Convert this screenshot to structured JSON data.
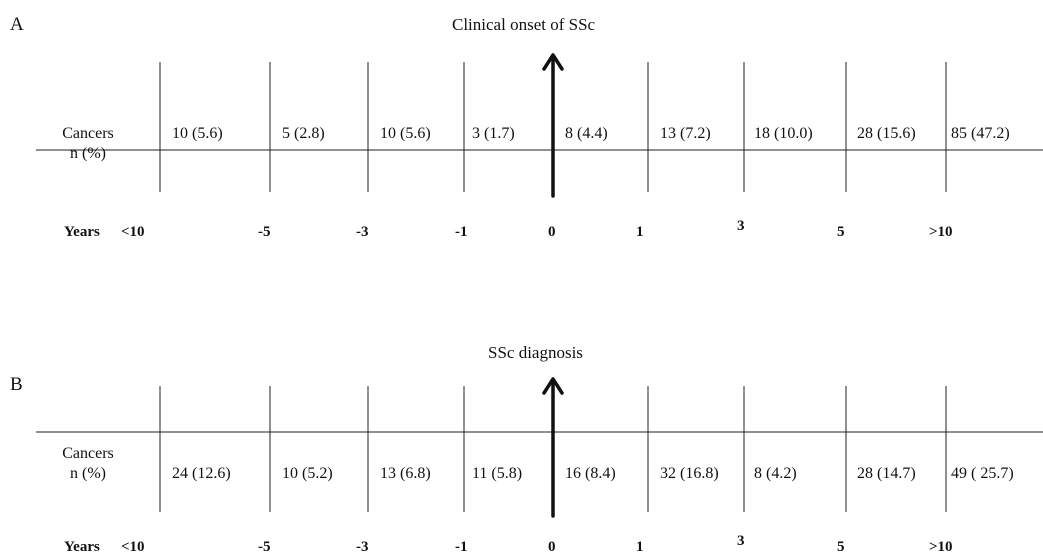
{
  "panels": [
    {
      "letter": "A",
      "title": "Clinical onset of SSc",
      "row_label": [
        "Cancers",
        "n (%)"
      ],
      "cells": [
        "10 (5.6)",
        "5 (2.8)",
        "10 (5.6)",
        "3 (1.7)",
        "8 (4.4)",
        "13 (7.2)",
        "18 (10.0)",
        "28 (15.6)",
        "85 (47.2)"
      ],
      "axis_label": "Years",
      "ticks": [
        "<10",
        "-5",
        "-3",
        "-1",
        "0",
        "1",
        "3",
        "5",
        ">10"
      ]
    },
    {
      "letter": "B",
      "title": "SSc diagnosis",
      "row_label": [
        "Cancers",
        "n (%)"
      ],
      "cells": [
        "24 (12.6)",
        "10 (5.2)",
        "13 (6.8)",
        "11 (5.8)",
        "16 (8.4)",
        "32 (16.8)",
        "8 (4.2)",
        "28 (14.7)",
        "49 ( 25.7)"
      ],
      "axis_label": "Years",
      "ticks": [
        "<10",
        "-5",
        "-3",
        "-1",
        "0",
        "1",
        "3",
        "5",
        ">10"
      ]
    }
  ]
}
